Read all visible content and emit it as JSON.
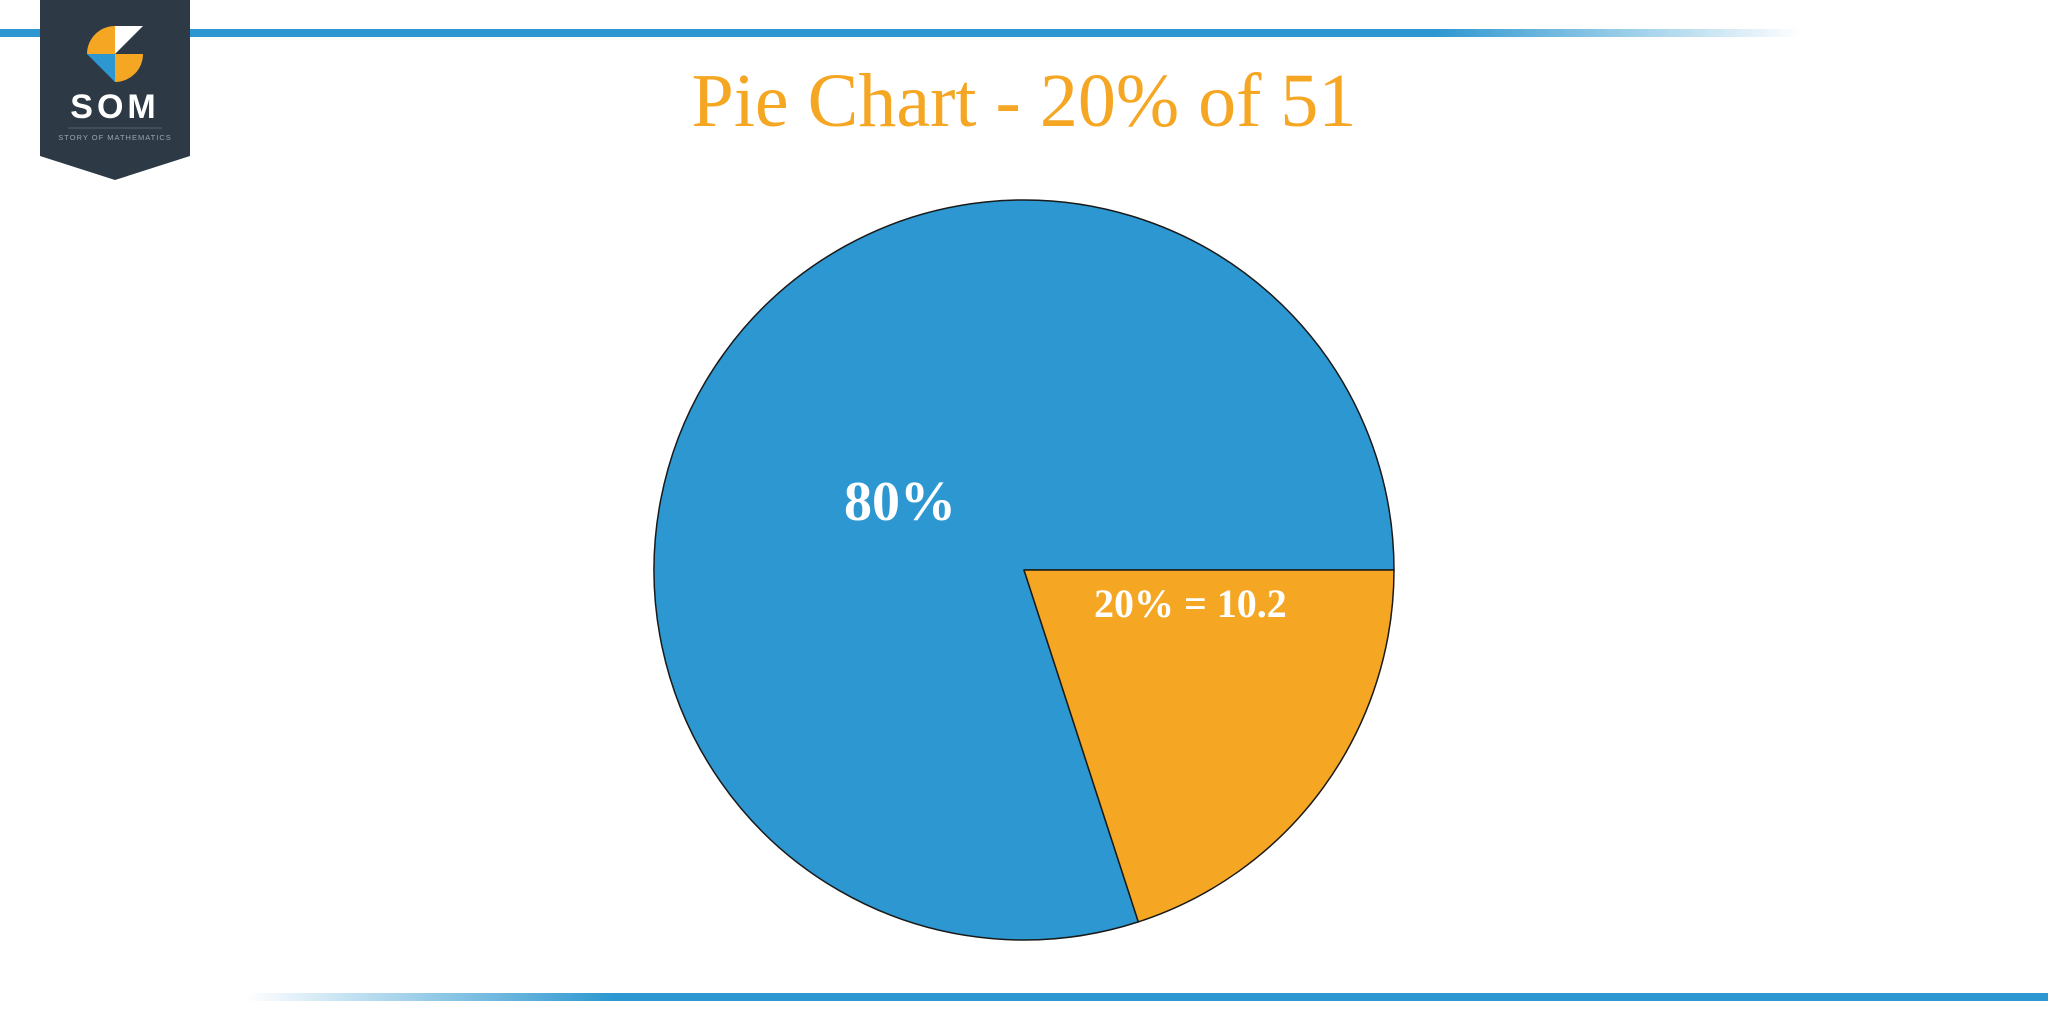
{
  "logo": {
    "text": "SOM",
    "subtext": "STORY OF MATHEMATICS",
    "badge_color": "#2d3a46",
    "icon_colors": {
      "tl": "#f5a623",
      "tr": "#ffffff",
      "bl": "#2c97d0",
      "br": "#f5a623"
    }
  },
  "bars": {
    "color": "#2c97d0",
    "fade_color": "#ffffff"
  },
  "chart": {
    "type": "pie",
    "title": "Pie Chart - 20% of 51",
    "title_color": "#f5a623",
    "title_fontsize": 76,
    "background_color": "#ffffff",
    "radius": 370,
    "stroke_color": "#1a1a1a",
    "stroke_width": 1.5,
    "slices": [
      {
        "label": "80%",
        "percent": 80,
        "color": "#2c97d0",
        "label_color": "#ffffff",
        "label_fontsize": 56
      },
      {
        "label": "20% = 10.2",
        "percent": 20,
        "color": "#f5a623",
        "label_color": "#ffffff",
        "label_fontsize": 40
      }
    ],
    "slice_start_angle_deg": 90
  }
}
